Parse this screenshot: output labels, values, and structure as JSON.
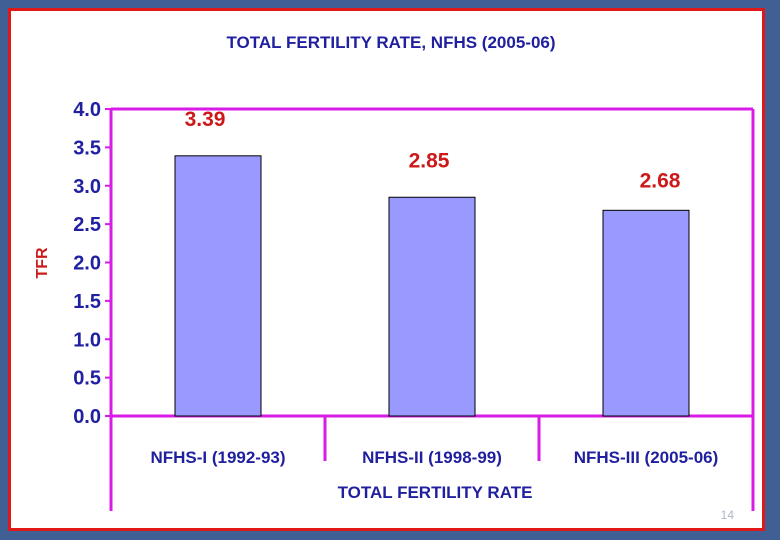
{
  "slide": {
    "page_number": "14"
  },
  "chart_data": {
    "type": "bar",
    "title": "TOTAL FERTILITY RATE, NFHS (2005-06)",
    "xlabel": "TOTAL FERTILITY RATE",
    "ylabel": "TFR",
    "categories": [
      "NFHS-I (1992-93)",
      "NFHS-II (1998-99)",
      "NFHS-III (2005-06)"
    ],
    "values": [
      3.39,
      2.85,
      2.68
    ],
    "value_labels": [
      "3.39",
      "2.85",
      "2.68"
    ],
    "ylim": [
      0,
      4.0
    ],
    "yticks": [
      0.0,
      0.5,
      1.0,
      1.5,
      2.0,
      2.5,
      3.0,
      3.5,
      4.0
    ],
    "ytick_labels": [
      "0.0",
      "0.5",
      "1.0",
      "1.5",
      "2.0",
      "2.5",
      "3.0",
      "3.5",
      "4.0"
    ],
    "grid": false,
    "colors": {
      "bar_fill": "#9999ff",
      "bar_stroke": "#000000",
      "frame": "#d81be6",
      "text": "#1f1f9f",
      "value_text": "#cc1a1a",
      "slide_border": "#e01818",
      "background_outer": "#3f5f95"
    }
  }
}
